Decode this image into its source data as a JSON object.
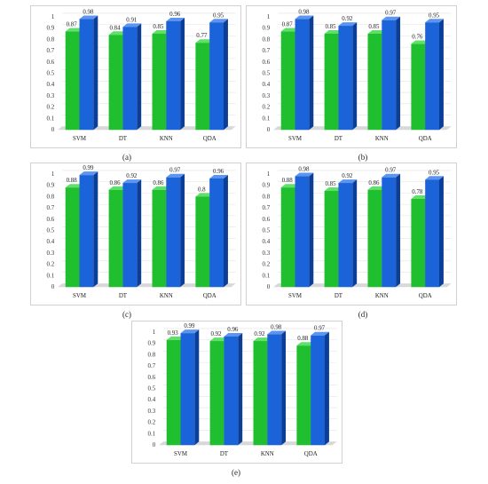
{
  "colors": {
    "green_front": "#1fbf2f",
    "green_side": "#128a1d",
    "green_top": "#5fe068",
    "blue_front": "#1a63d8",
    "blue_side": "#0c3e98",
    "blue_top": "#5b95f0",
    "grid": "#e3e3e3",
    "floor": "#d8d8d8"
  },
  "chart_data": [
    {
      "type": "bar",
      "caption": "(a)",
      "categories": [
        "SVM",
        "DT",
        "KNN",
        "QDA"
      ],
      "series": [
        {
          "values": [
            0.87,
            0.84,
            0.85,
            0.77
          ]
        },
        {
          "values": [
            0.98,
            0.91,
            0.96,
            0.95
          ]
        }
      ],
      "value_labels": [
        [
          "0.87",
          "0.84",
          "0.85",
          "0.77"
        ],
        [
          "0.98",
          "0.91",
          "0.96",
          "0.95"
        ]
      ],
      "ylim": [
        0,
        1
      ],
      "yticks": [
        "0",
        "0.1",
        "0.2",
        "0.3",
        "0.4",
        "0.5",
        "0.6",
        "0.7",
        "0.8",
        "0.9",
        "1"
      ],
      "grid": true
    },
    {
      "type": "bar",
      "caption": "(b)",
      "categories": [
        "SVM",
        "DT",
        "KNN",
        "QDA"
      ],
      "series": [
        {
          "values": [
            0.87,
            0.85,
            0.85,
            0.76
          ]
        },
        {
          "values": [
            0.98,
            0.92,
            0.97,
            0.95
          ]
        }
      ],
      "value_labels": [
        [
          "0.87",
          "0.85",
          "0.85",
          "0.76"
        ],
        [
          "0.98",
          "0.92",
          "0.97",
          "0.95"
        ]
      ],
      "ylim": [
        0,
        1
      ],
      "yticks": [
        "0",
        "0.1",
        "0.2",
        "0.3",
        "0.4",
        "0.5",
        "0.6",
        "0.7",
        "0.8",
        "0.9",
        "1"
      ],
      "grid": true
    },
    {
      "type": "bar",
      "caption": "(c)",
      "categories": [
        "SVM",
        "DT",
        "KNN",
        "QDA"
      ],
      "series": [
        {
          "values": [
            0.88,
            0.86,
            0.86,
            0.8
          ]
        },
        {
          "values": [
            0.99,
            0.92,
            0.97,
            0.96
          ]
        }
      ],
      "value_labels": [
        [
          "0.88",
          "0.86",
          "0.86",
          "0.8"
        ],
        [
          "0.99",
          "0.92",
          "0.97",
          "0.96"
        ]
      ],
      "ylim": [
        0,
        1
      ],
      "yticks": [
        "0",
        "0.1",
        "0.2",
        "0.3",
        "0.4",
        "0.5",
        "0.6",
        "0.7",
        "0.8",
        "0.9",
        "1"
      ],
      "grid": true
    },
    {
      "type": "bar",
      "caption": "(d)",
      "categories": [
        "SVM",
        "DT",
        "KNN",
        "QDA"
      ],
      "series": [
        {
          "values": [
            0.88,
            0.85,
            0.86,
            0.78
          ]
        },
        {
          "values": [
            0.98,
            0.92,
            0.97,
            0.95
          ]
        }
      ],
      "value_labels": [
        [
          "0.88",
          "0.85",
          "0.86",
          "0.78"
        ],
        [
          "0.98",
          "0.92",
          "0.97",
          "0.95"
        ]
      ],
      "ylim": [
        0,
        1
      ],
      "yticks": [
        "0",
        "0.1",
        "0.2",
        "0.3",
        "0.4",
        "0.5",
        "0.6",
        "0.7",
        "0.8",
        "0.9",
        "1"
      ],
      "grid": true
    },
    {
      "type": "bar",
      "caption": "(e)",
      "categories": [
        "SVM",
        "DT",
        "KNN",
        "QDA"
      ],
      "series": [
        {
          "values": [
            0.93,
            0.92,
            0.92,
            0.88
          ]
        },
        {
          "values": [
            0.99,
            0.96,
            0.98,
            0.97
          ]
        }
      ],
      "value_labels": [
        [
          "0.93",
          "0.92",
          "0.92",
          "0.88"
        ],
        [
          "0.99",
          "0.96",
          "0.98",
          "0.97"
        ]
      ],
      "ylim": [
        0,
        1
      ],
      "yticks": [
        "0",
        "0.1",
        "0.2",
        "0.3",
        "0.4",
        "0.5",
        "0.6",
        "0.7",
        "0.8",
        "0.9",
        "1"
      ],
      "grid": true
    }
  ]
}
